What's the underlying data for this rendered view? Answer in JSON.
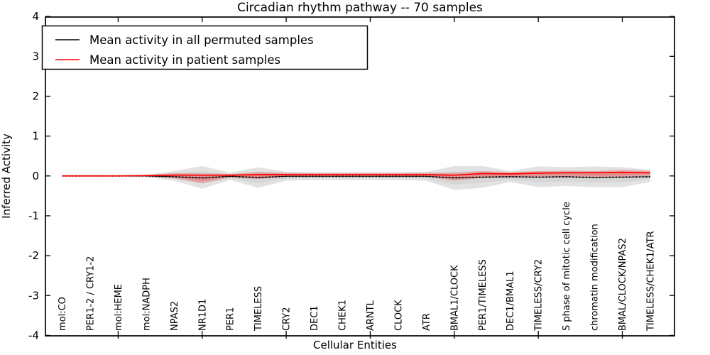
{
  "title": "Circadian rhythm pathway -- 70 samples",
  "axes": {
    "xlabel": "Cellular Entities",
    "ylabel": "Inferred Activity"
  },
  "legend": {
    "items": [
      {
        "label": "Mean activity in all permuted samples",
        "color": "#000000"
      },
      {
        "label": "Mean activity in patient samples",
        "color": "#ff0000"
      }
    ]
  },
  "chart_data": {
    "type": "line",
    "title": "Circadian rhythm pathway -- 70 samples",
    "xlabel": "Cellular Entities",
    "ylabel": "Inferred Activity",
    "ylim": [
      -4,
      4
    ],
    "yticks": [
      4,
      3,
      2,
      1,
      0,
      -1,
      -2,
      -3,
      -4
    ],
    "grid": false,
    "legend_position": "upper left",
    "categories": [
      "mol:CO",
      "PER1-2 / CRY1-2",
      "mol:HEME",
      "mol:NADPH",
      "NPAS2",
      "NR1D1",
      "PER1",
      "TIMELESS",
      "CRY2",
      "DEC1",
      "CHEK1",
      "ARNTL",
      "CLOCK",
      "ATR",
      "BMAL1/CLOCK",
      "PER1/TIMELESS",
      "DEC1/BMAL1",
      "TIMELESS/CRY2",
      "S phase of mitotic cell cycle",
      "chromatin modification",
      "BMAL/CLOCK/NPAS2",
      "TIMELESS/CHEK1/ATR"
    ],
    "xtick_mark_indices": [
      2,
      5,
      8,
      11,
      14,
      17,
      20
    ],
    "series": [
      {
        "name": "Mean activity in all permuted samples",
        "color": "#000000",
        "style": "dotted",
        "values": [
          0.0,
          0.0,
          0.0,
          0.0,
          -0.02,
          -0.05,
          -0.01,
          -0.04,
          -0.01,
          -0.01,
          -0.01,
          -0.01,
          -0.01,
          -0.01,
          -0.05,
          -0.03,
          -0.02,
          -0.03,
          -0.02,
          -0.04,
          -0.03,
          -0.02
        ]
      },
      {
        "name": "Mean activity in patient samples",
        "color": "#ff0000",
        "style": "solid",
        "values": [
          0.0,
          0.0,
          0.0,
          0.01,
          0.02,
          0.02,
          0.02,
          0.03,
          0.03,
          0.03,
          0.03,
          0.03,
          0.03,
          0.03,
          0.02,
          0.06,
          0.05,
          0.07,
          0.08,
          0.08,
          0.09,
          0.08
        ]
      }
    ],
    "bands": [
      {
        "name": "permuted-samples-range",
        "color": "#bfbfbf",
        "opacity": 0.45,
        "upper": [
          0.02,
          0.02,
          0.02,
          0.03,
          0.12,
          0.25,
          0.08,
          0.22,
          0.1,
          0.08,
          0.08,
          0.08,
          0.08,
          0.1,
          0.25,
          0.25,
          0.12,
          0.24,
          0.22,
          0.24,
          0.22,
          0.15
        ],
        "lower": [
          -0.02,
          -0.02,
          -0.02,
          -0.03,
          -0.12,
          -0.32,
          -0.1,
          -0.3,
          -0.12,
          -0.1,
          -0.1,
          -0.1,
          -0.1,
          -0.12,
          -0.35,
          -0.3,
          -0.15,
          -0.28,
          -0.25,
          -0.28,
          -0.28,
          -0.15
        ]
      },
      {
        "name": "patient-samples-range",
        "color": "#ff0000",
        "opacity": 0.22,
        "upper": [
          0.01,
          0.01,
          0.01,
          0.02,
          0.07,
          0.06,
          0.05,
          0.1,
          0.08,
          0.08,
          0.08,
          0.08,
          0.08,
          0.08,
          0.08,
          0.12,
          0.1,
          0.12,
          0.13,
          0.12,
          0.16,
          0.13
        ],
        "lower": [
          -0.01,
          -0.01,
          -0.01,
          -0.02,
          -0.06,
          -0.18,
          -0.04,
          -0.08,
          -0.02,
          -0.01,
          -0.01,
          -0.01,
          -0.01,
          -0.02,
          -0.12,
          -0.05,
          -0.03,
          -0.03,
          -0.02,
          -0.04,
          -0.03,
          0.0
        ]
      }
    ]
  }
}
